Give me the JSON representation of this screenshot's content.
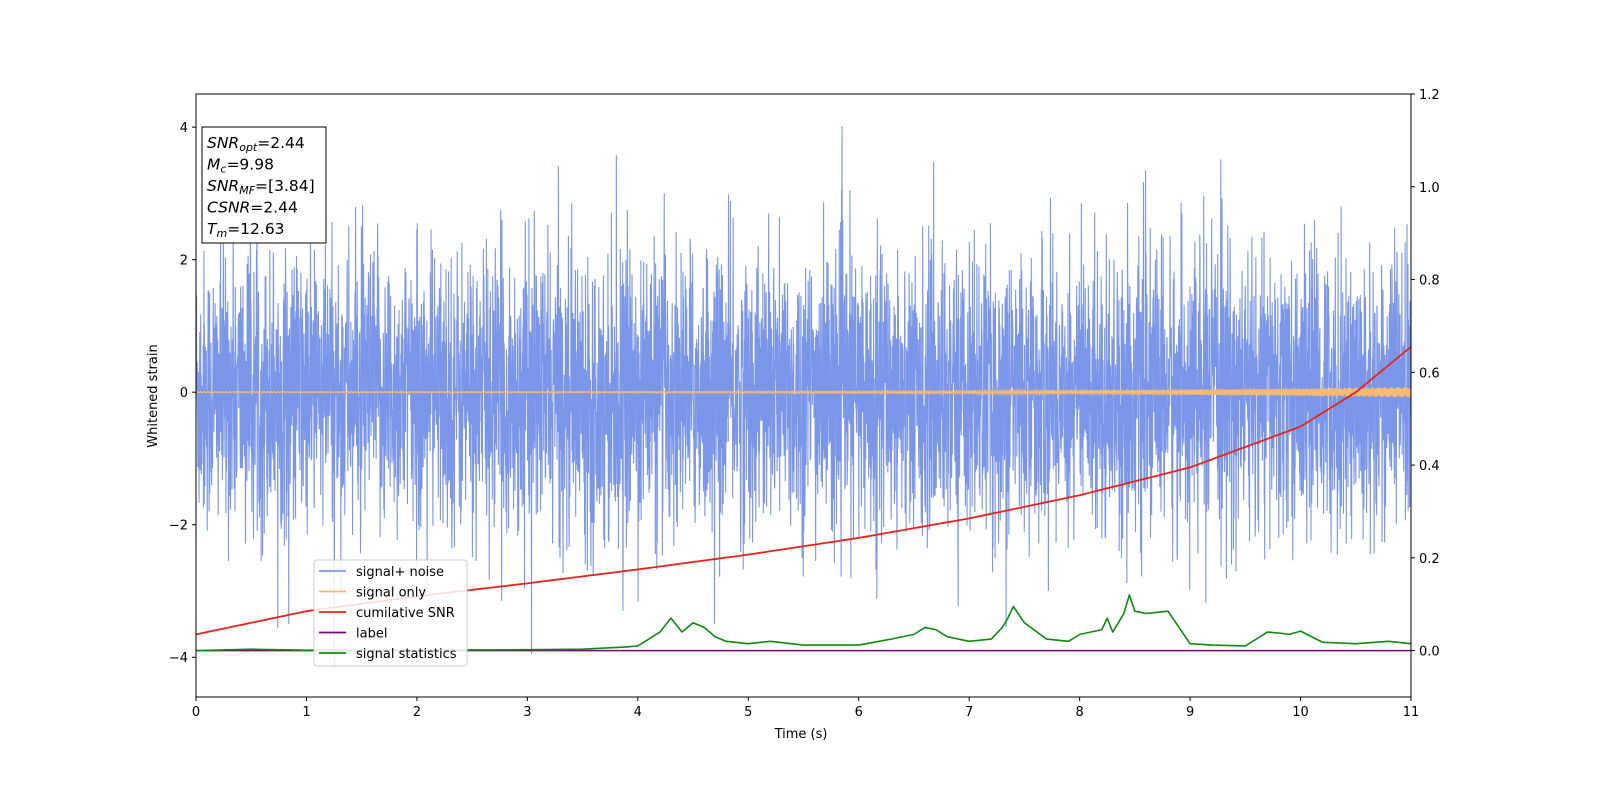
{
  "chart_data": {
    "type": "line",
    "xlabel": "Time (s)",
    "ylabel": "Whitened strain",
    "xlim": [
      0,
      11
    ],
    "ylim": [
      -4.6,
      4.5
    ],
    "y2lim": [
      -0.1,
      1.2
    ],
    "x_ticks": [
      "0",
      "1",
      "2",
      "3",
      "4",
      "5",
      "6",
      "7",
      "8",
      "9",
      "10",
      "11"
    ],
    "y_ticks": [
      "4",
      "2",
      "0",
      "−2",
      "−4"
    ],
    "y_tick_values": [
      4,
      2,
      0,
      -2,
      -4
    ],
    "y2_ticks": [
      "1.2",
      "1.0",
      "0.8",
      "0.6",
      "0.4",
      "0.2",
      "0.0"
    ],
    "y2_tick_values": [
      1.2,
      1.0,
      0.8,
      0.6,
      0.4,
      0.2,
      0.0
    ],
    "grid": false,
    "legend_position": "lower-left",
    "info_box": [
      {
        "var": "SNR",
        "sub": "opt",
        "val": "=2.44"
      },
      {
        "var": "M",
        "sub": "c",
        "val": "=9.98"
      },
      {
        "var": "SNR",
        "sub": "MF",
        "val": "=[3.84]"
      },
      {
        "var": "CSNR",
        "sub": "",
        "val": "=2.44"
      },
      {
        "var": "T",
        "sub": "m",
        "val": "=12.63"
      }
    ],
    "series": [
      {
        "name": "signal+ noise",
        "axis": "left",
        "color": "#7b96e8",
        "noise_band": [
          -2.3,
          2.3
        ],
        "approx_extremes": {
          "max": 4.1,
          "min": -4.15
        }
      },
      {
        "name": "signal only",
        "axis": "left",
        "color": "#f5b971",
        "amplitude_start": 0.01,
        "amplitude_end": 0.08
      },
      {
        "name": "cumilative SNR",
        "axis": "right",
        "color": "#e8231b",
        "x": [
          0,
          1,
          2,
          3,
          4,
          5,
          6,
          7,
          8,
          9,
          10,
          10.5,
          11
        ],
        "values": [
          0.035,
          0.085,
          0.117,
          0.145,
          0.175,
          0.207,
          0.243,
          0.285,
          0.335,
          0.395,
          0.483,
          0.557,
          0.655
        ]
      },
      {
        "name": "label",
        "axis": "right",
        "color": "#800080",
        "x": [
          0,
          11
        ],
        "values": [
          0.0,
          0.0
        ]
      },
      {
        "name": "signal statistics",
        "axis": "right",
        "color": "#118811",
        "x": [
          0,
          0.5,
          1,
          2,
          3,
          3.5,
          3.9,
          4.0,
          4.1,
          4.2,
          4.3,
          4.4,
          4.5,
          4.6,
          4.7,
          4.8,
          5.0,
          5.2,
          5.5,
          6.0,
          6.3,
          6.5,
          6.6,
          6.7,
          6.8,
          7.0,
          7.2,
          7.3,
          7.35,
          7.4,
          7.5,
          7.7,
          7.9,
          8.0,
          8.2,
          8.25,
          8.3,
          8.4,
          8.45,
          8.5,
          8.6,
          8.8,
          8.9,
          9.0,
          9.2,
          9.5,
          9.7,
          9.8,
          9.9,
          10.0,
          10.2,
          10.5,
          10.8,
          11.0
        ],
        "values": [
          0.0,
          0.003,
          0.001,
          0.001,
          0.002,
          0.003,
          0.008,
          0.01,
          0.025,
          0.04,
          0.07,
          0.04,
          0.06,
          0.05,
          0.03,
          0.02,
          0.015,
          0.02,
          0.012,
          0.012,
          0.025,
          0.035,
          0.05,
          0.045,
          0.03,
          0.02,
          0.025,
          0.05,
          0.07,
          0.095,
          0.06,
          0.025,
          0.02,
          0.035,
          0.045,
          0.07,
          0.04,
          0.08,
          0.12,
          0.085,
          0.08,
          0.085,
          0.05,
          0.015,
          0.012,
          0.01,
          0.04,
          0.038,
          0.035,
          0.042,
          0.018,
          0.015,
          0.02,
          0.015
        ]
      }
    ]
  }
}
